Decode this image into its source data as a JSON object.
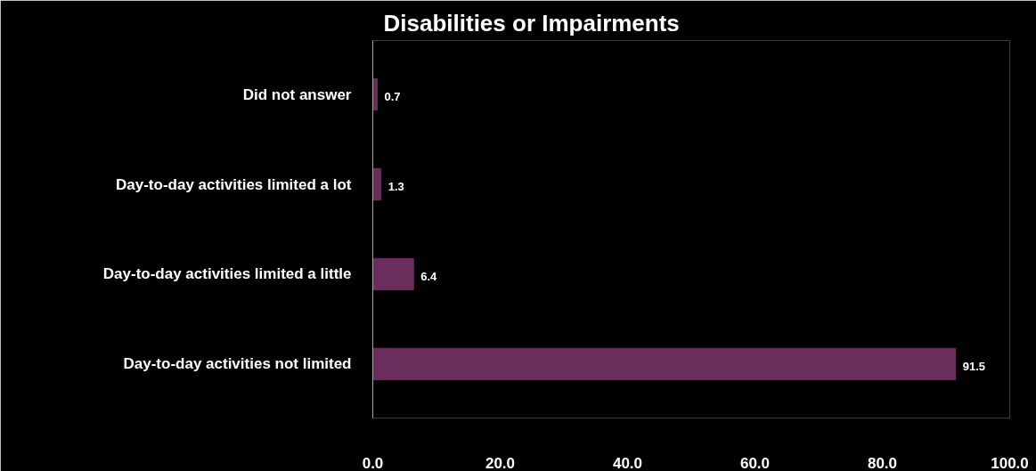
{
  "chart_data": {
    "type": "bar",
    "orientation": "horizontal",
    "title": "Disabilities or Impairments",
    "categories": [
      "Did not answer",
      "Day-to-day activities limited a lot",
      "Day-to-day activities limited a little",
      "Day-to-day activities not limited"
    ],
    "values": [
      0.7,
      1.3,
      6.4,
      91.5
    ],
    "color": "#6b2d5c",
    "data_labels": true,
    "grid": false,
    "xlim": [
      0,
      100
    ],
    "xticks": [
      {
        "value": 0,
        "label": "0.0"
      },
      {
        "value": 20,
        "label": "20.0"
      },
      {
        "value": 40,
        "label": "40.0"
      },
      {
        "value": 60,
        "label": "60.0"
      },
      {
        "value": 80,
        "label": "80.0"
      },
      {
        "value": 100,
        "label": "100.0"
      }
    ]
  }
}
